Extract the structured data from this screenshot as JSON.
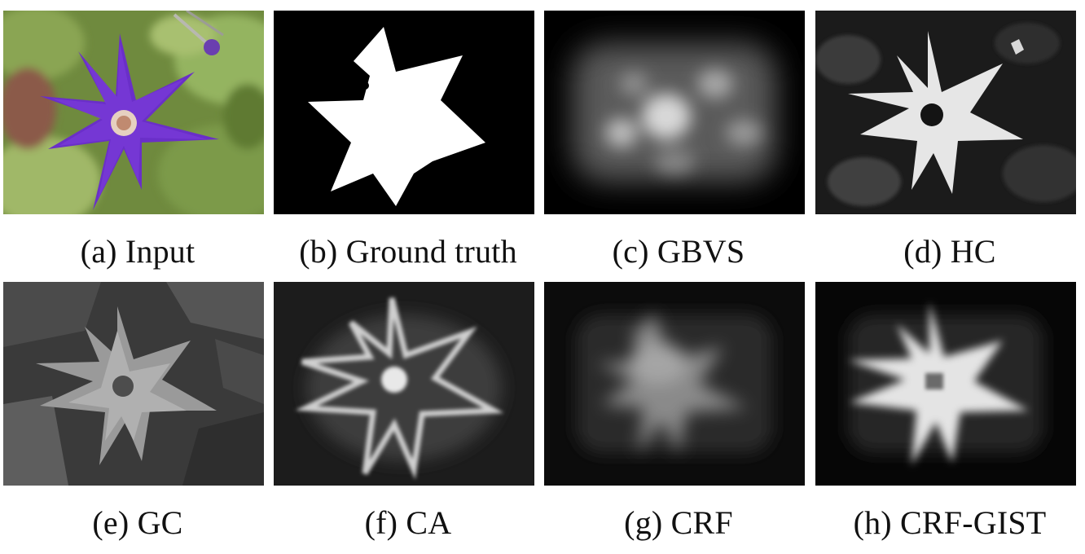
{
  "figure": {
    "panels": [
      {
        "id": "a",
        "caption": "(a) Input"
      },
      {
        "id": "b",
        "caption": "(b) Ground truth"
      },
      {
        "id": "c",
        "caption": "(c) GBVS"
      },
      {
        "id": "d",
        "caption": "(d) HC"
      },
      {
        "id": "e",
        "caption": "(e) GC"
      },
      {
        "id": "f",
        "caption": "(f) CA"
      },
      {
        "id": "g",
        "caption": "(g) CRF"
      },
      {
        "id": "h",
        "caption": "(h) CRF-GIST"
      }
    ]
  }
}
